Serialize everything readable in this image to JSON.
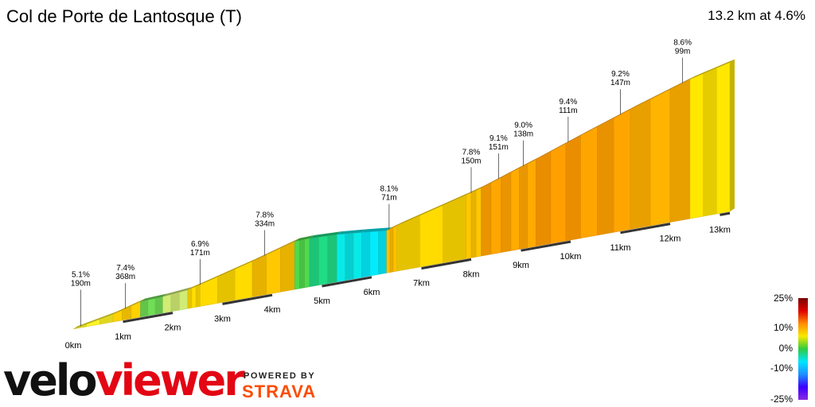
{
  "header": {
    "title": "Col de Porte de Lantosque (T)",
    "summary": "13.2 km at 4.6%"
  },
  "branding": {
    "logo_part1": "velo",
    "logo_part2": "viewer",
    "powered_by": "POWERED BY",
    "strava": "STRAVA"
  },
  "color_scale": {
    "labels": [
      "25%",
      "10%",
      "0%",
      "-10%",
      "-25%"
    ],
    "colors": [
      "#7a0000",
      "#e00000",
      "#ff8c00",
      "#f7ea00",
      "#2ecc40",
      "#00e5ff",
      "#1e90ff",
      "#3a00ff",
      "#8a2be2"
    ]
  },
  "chart_data": {
    "type": "area",
    "xlabel": "",
    "ylabel": "",
    "x_unit": "km",
    "xlim": [
      0,
      13.2
    ],
    "x_ticks": [
      "0km",
      "1km",
      "2km",
      "3km",
      "4km",
      "5km",
      "6km",
      "7km",
      "8km",
      "9km",
      "10km",
      "11km",
      "12km",
      "13km"
    ],
    "gradient_color_stops": [
      {
        "gradient": -25,
        "color": "#8a2be2"
      },
      {
        "gradient": -10,
        "color": "#1e90ff"
      },
      {
        "gradient": -3,
        "color": "#00e5ff"
      },
      {
        "gradient": 0,
        "color": "#2ecc40"
      },
      {
        "gradient": 3,
        "color": "#e8e87a"
      },
      {
        "gradient": 6,
        "color": "#f7ea00"
      },
      {
        "gradient": 10,
        "color": "#ff8c00"
      },
      {
        "gradient": 15,
        "color": "#e00000"
      },
      {
        "gradient": 25,
        "color": "#7a0000"
      }
    ],
    "segments": [
      {
        "from": 0.0,
        "to": 0.8,
        "gradient": 5.1
      },
      {
        "from": 0.8,
        "to": 1.35,
        "gradient": 7.4
      },
      {
        "from": 1.35,
        "to": 1.8,
        "gradient": 1.0
      },
      {
        "from": 1.8,
        "to": 2.3,
        "gradient": 2.5
      },
      {
        "from": 2.3,
        "to": 2.55,
        "gradient": 6.9
      },
      {
        "from": 2.55,
        "to": 3.6,
        "gradient": 7.0
      },
      {
        "from": 3.6,
        "to": 4.45,
        "gradient": 7.8
      },
      {
        "from": 4.45,
        "to": 4.75,
        "gradient": 0.5
      },
      {
        "from": 4.75,
        "to": 5.3,
        "gradient": -1.0
      },
      {
        "from": 5.3,
        "to": 5.8,
        "gradient": -2.5
      },
      {
        "from": 5.8,
        "to": 6.3,
        "gradient": -2.8
      },
      {
        "from": 6.3,
        "to": 6.5,
        "gradient": 8.1
      },
      {
        "from": 6.5,
        "to": 7.9,
        "gradient": 7.0
      },
      {
        "from": 7.9,
        "to": 8.2,
        "gradient": 7.8
      },
      {
        "from": 8.2,
        "to": 8.8,
        "gradient": 9.1
      },
      {
        "from": 8.8,
        "to": 9.3,
        "gradient": 9.0
      },
      {
        "from": 9.3,
        "to": 10.2,
        "gradient": 9.4
      },
      {
        "from": 10.2,
        "to": 11.2,
        "gradient": 9.2
      },
      {
        "from": 11.2,
        "to": 12.4,
        "gradient": 8.6
      },
      {
        "from": 12.4,
        "to": 13.2,
        "gradient": 6.5
      }
    ],
    "profile": [
      {
        "km": 0.0,
        "elev": 0
      },
      {
        "km": 0.8,
        "elev": 41
      },
      {
        "km": 1.35,
        "elev": 82
      },
      {
        "km": 1.8,
        "elev": 87
      },
      {
        "km": 2.3,
        "elev": 99
      },
      {
        "km": 2.55,
        "elev": 116
      },
      {
        "km": 3.6,
        "elev": 190
      },
      {
        "km": 4.45,
        "elev": 256
      },
      {
        "km": 4.75,
        "elev": 258
      },
      {
        "km": 5.3,
        "elev": 252
      },
      {
        "km": 5.8,
        "elev": 240
      },
      {
        "km": 6.3,
        "elev": 226
      },
      {
        "km": 6.5,
        "elev": 242
      },
      {
        "km": 7.9,
        "elev": 340
      },
      {
        "km": 8.2,
        "elev": 363
      },
      {
        "km": 8.8,
        "elev": 418
      },
      {
        "km": 9.3,
        "elev": 463
      },
      {
        "km": 10.2,
        "elev": 548
      },
      {
        "km": 11.2,
        "elev": 640
      },
      {
        "km": 12.4,
        "elev": 743
      },
      {
        "km": 13.2,
        "elev": 795
      }
    ],
    "annotations": [
      {
        "km": 0.15,
        "gradient": "5.1%",
        "length": "190m"
      },
      {
        "km": 1.05,
        "gradient": "7.4%",
        "length": "368m"
      },
      {
        "km": 2.55,
        "gradient": "6.9%",
        "length": "171m"
      },
      {
        "km": 3.85,
        "gradient": "7.8%",
        "length": "334m"
      },
      {
        "km": 6.35,
        "gradient": "8.1%",
        "length": "71m"
      },
      {
        "km": 8.0,
        "gradient": "7.8%",
        "length": "150m"
      },
      {
        "km": 8.55,
        "gradient": "9.1%",
        "length": "151m"
      },
      {
        "km": 9.05,
        "gradient": "9.0%",
        "length": "138m"
      },
      {
        "km": 9.95,
        "gradient": "9.4%",
        "length": "111m"
      },
      {
        "km": 11.0,
        "gradient": "9.2%",
        "length": "147m"
      },
      {
        "km": 12.25,
        "gradient": "8.6%",
        "length": "99m"
      }
    ]
  }
}
